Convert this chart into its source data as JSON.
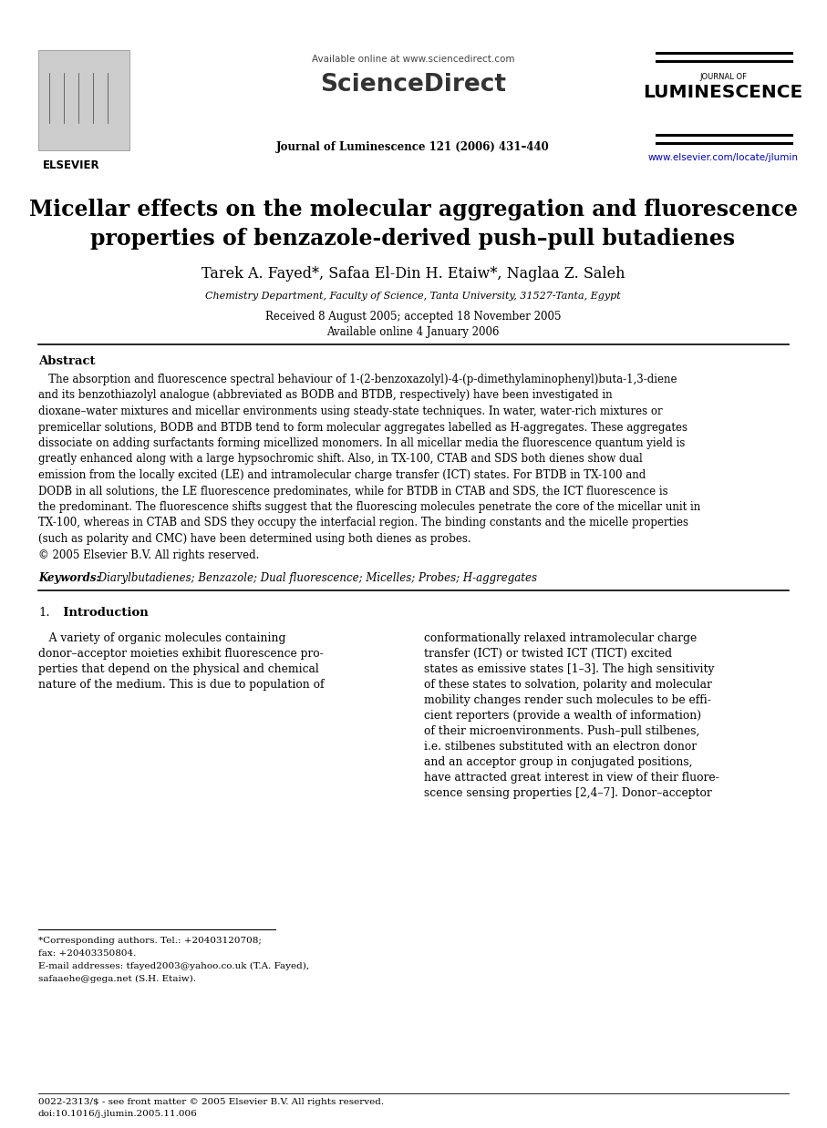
{
  "bg_color": "#ffffff",
  "page_width": 9.07,
  "page_height": 12.38,
  "dpi": 100,
  "header": {
    "available_online": "Available online at www.sciencedirect.com",
    "sciencedirect_text": "ScienceDirect",
    "journal_name_small": "JOURNAL OF",
    "journal_name_large": "LUMINESCENCE",
    "journal_ref": "Journal of Luminescence 121 (2006) 431–440",
    "url": "www.elsevier.com/locate/jlumin",
    "url_color": "#0000bb",
    "elsevier_text": "ELSEVIER"
  },
  "title_line1": "Micellar effects on the molecular aggregation and fluorescence",
  "title_line2": "properties of benzazole-derived push–pull butadienes",
  "authors": "Tarek A. Fayed*, Safaa El-Din H. Etaiw*, Naglaa Z. Saleh",
  "affiliation": "Chemistry Department, Faculty of Science, Tanta University, 31527-Tanta, Egypt",
  "received": "Received 8 August 2005; accepted 18 November 2005",
  "available": "Available online 4 January 2006",
  "abstract_label": "Abstract",
  "abstract_lines": [
    "   The absorption and fluorescence spectral behaviour of 1-(2-benzoxazolyl)-4-(p-dimethylaminophenyl)buta-1,3-diene",
    "and its benzothiazolyl analogue (abbreviated as BODB and BTDB, respectively) have been investigated in",
    "dioxane–water mixtures and micellar environments using steady-state techniques. In water, water-rich mixtures or",
    "premicellar solutions, BODB and BTDB tend to form molecular aggregates labelled as H-aggregates. These aggregates",
    "dissociate on adding surfactants forming micellized monomers. In all micellar media the fluorescence quantum yield is",
    "greatly enhanced along with a large hypsochromic shift. Also, in TX-100, CTAB and SDS both dienes show dual",
    "emission from the locally excited (LE) and intramolecular charge transfer (ICT) states. For BTDB in TX-100 and",
    "DODB in all solutions, the LE fluorescence predominates, while for BTDB in CTAB and SDS, the ICT fluorescence is",
    "the predominant. The fluorescence shifts suggest that the fluorescing molecules penetrate the core of the micellar unit in",
    "TX-100, whereas in CTAB and SDS they occupy the interfacial region. The binding constants and the micelle properties",
    "(such as polarity and CMC) have been determined using both dienes as probes.",
    "© 2005 Elsevier B.V. All rights reserved."
  ],
  "keywords_label": "Keywords:",
  "keywords_text": " Diarylbutadienes; Benzazole; Dual fluorescence; Micelles; Probes; H-aggregates",
  "section1_number": "1.",
  "section1_title": "  Introduction",
  "intro_left_lines": [
    "   A variety of organic molecules containing",
    "donor–acceptor moieties exhibit fluorescence pro-",
    "perties that depend on the physical and chemical",
    "nature of the medium. This is due to population of"
  ],
  "intro_right_lines": [
    "conformationally relaxed intramolecular charge",
    "transfer (ICT) or twisted ICT (TICT) excited",
    "states as emissive states [1–3]. The high sensitivity",
    "of these states to solvation, polarity and molecular",
    "mobility changes render such molecules to be effi-",
    "cient reporters (provide a wealth of information)",
    "of their microenvironments. Push–pull stilbenes,",
    "i.e. stilbenes substituted with an electron donor",
    "and an acceptor group in conjugated positions,",
    "have attracted great interest in view of their fluore-",
    "scence sensing properties [2,4–7]. Donor–acceptor"
  ],
  "footnote_lines": [
    "*Corresponding authors. Tel.: +20403120708;",
    "fax: +20403350804.",
    "E-mail addresses: tfayed2003@yahoo.co.uk (T.A. Fayed),",
    "safaaehe@gega.net (S.H. Etaiw)."
  ],
  "bottom_lines": [
    "0022-2313/$ - see front matter © 2005 Elsevier B.V. All rights reserved.",
    "doi:10.1016/j.jlumin.2005.11.006"
  ]
}
